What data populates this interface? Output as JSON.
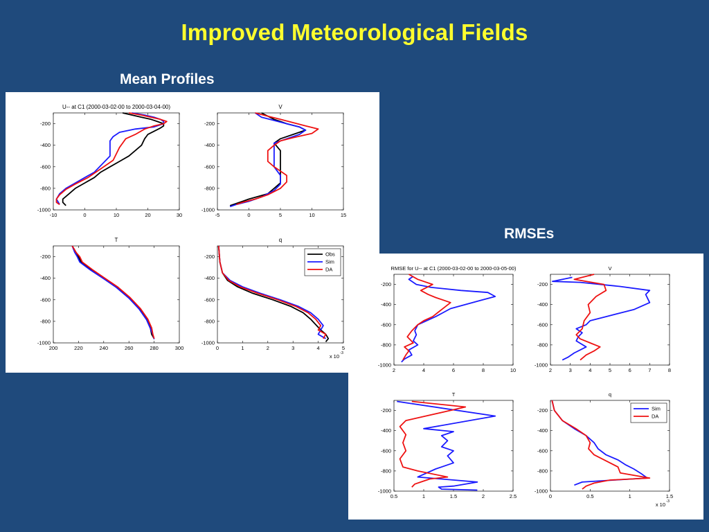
{
  "slide": {
    "title": "Improved Meteorological Fields",
    "mean_label": "Mean Profiles",
    "rmse_label": "RMSEs"
  },
  "colors": {
    "obs": "#000000",
    "sim": "#1a1aff",
    "da": "#ee1111"
  },
  "chart_data": [
    {
      "type": "line",
      "id": "mean-u",
      "title": "U-- at C1 (2000-03-02-00 to 2000-03-04-00)",
      "xlim": [
        -10,
        30
      ],
      "ylim": [
        -1000,
        -100
      ],
      "xticks": [
        "-10",
        "0",
        "10",
        "20",
        "30"
      ],
      "yticks": [
        "-200",
        "-400",
        "-600",
        "-800",
        "-1000"
      ],
      "series": [
        {
          "name": "Obs",
          "x": [
            12,
            15,
            18,
            21,
            23,
            25,
            25,
            24,
            22,
            20,
            19,
            18,
            16,
            14,
            11,
            8,
            5,
            3,
            0,
            -3,
            -5,
            -7,
            -7,
            -6
          ],
          "y": [
            -100,
            -120,
            -140,
            -160,
            -180,
            -200,
            -220,
            -240,
            -270,
            -300,
            -340,
            -400,
            -450,
            -500,
            -550,
            -600,
            -650,
            -700,
            -750,
            -800,
            -850,
            -900,
            -930,
            -960
          ]
        },
        {
          "name": "Sim",
          "x": [
            15,
            19,
            22,
            24,
            25,
            25,
            22,
            16,
            11,
            9,
            8,
            8,
            8,
            8,
            6,
            3,
            0,
            -3,
            -6,
            -8,
            -9,
            -8
          ],
          "y": [
            -100,
            -120,
            -140,
            -160,
            -180,
            -200,
            -230,
            -250,
            -280,
            -320,
            -360,
            -400,
            -450,
            -500,
            -560,
            -650,
            -700,
            -750,
            -800,
            -850,
            -900,
            -950
          ]
        },
        {
          "name": "DA",
          "x": [
            14,
            18,
            21,
            24,
            26,
            25,
            22,
            19,
            16,
            13,
            12,
            11,
            10,
            9,
            5,
            1,
            -3,
            -6,
            -8,
            -9,
            -9,
            -8
          ],
          "y": [
            -100,
            -120,
            -140,
            -160,
            -180,
            -200,
            -220,
            -250,
            -300,
            -340,
            -380,
            -420,
            -480,
            -540,
            -620,
            -700,
            -760,
            -810,
            -860,
            -900,
            -930,
            -950
          ]
        }
      ]
    },
    {
      "type": "line",
      "id": "mean-v",
      "title": "V",
      "xlim": [
        -5,
        15
      ],
      "ylim": [
        -1000,
        -100
      ],
      "xticks": [
        "-5",
        "0",
        "5",
        "10",
        "15"
      ],
      "yticks": [
        "-200",
        "-400",
        "-600",
        "-800",
        "-1000"
      ],
      "series": [
        {
          "name": "Obs",
          "x": [
            2,
            3,
            4,
            5,
            6,
            8,
            9,
            7,
            5,
            4,
            5,
            5,
            5,
            5,
            5,
            4,
            3,
            0,
            -1,
            -2,
            -3
          ],
          "y": [
            -100,
            -130,
            -160,
            -180,
            -200,
            -230,
            -260,
            -300,
            -340,
            -380,
            -450,
            -500,
            -550,
            -650,
            -750,
            -800,
            -850,
            -900,
            -920,
            -940,
            -960
          ]
        },
        {
          "name": "Sim",
          "x": [
            1,
            2,
            4,
            6,
            8,
            9,
            8,
            6,
            4,
            4,
            4,
            4,
            5,
            5,
            4,
            2,
            0,
            -2,
            -3
          ],
          "y": [
            -100,
            -140,
            -170,
            -200,
            -230,
            -260,
            -300,
            -340,
            -380,
            -450,
            -520,
            -600,
            -680,
            -760,
            -820,
            -880,
            -920,
            -950,
            -970
          ]
        },
        {
          "name": "DA",
          "x": [
            1,
            3,
            5,
            7,
            9,
            11,
            10,
            7,
            5,
            4,
            3,
            3,
            4,
            6,
            6,
            5,
            3,
            1,
            -1,
            -2
          ],
          "y": [
            -100,
            -130,
            -160,
            -190,
            -220,
            -250,
            -290,
            -330,
            -360,
            -400,
            -450,
            -550,
            -600,
            -680,
            -740,
            -800,
            -860,
            -900,
            -930,
            -950
          ]
        }
      ]
    },
    {
      "type": "line",
      "id": "mean-t",
      "title": "T",
      "xlim": [
        200,
        300
      ],
      "ylim": [
        -1000,
        -100
      ],
      "xticks": [
        "200",
        "220",
        "240",
        "260",
        "280",
        "300"
      ],
      "yticks": [
        "-200",
        "-400",
        "-600",
        "-800",
        "-1000"
      ],
      "series": [
        {
          "name": "Obs",
          "x": [
            215,
            218,
            220,
            222,
            230,
            240,
            250,
            260,
            268,
            274,
            277,
            278,
            280
          ],
          "y": [
            -100,
            -160,
            -200,
            -250,
            -320,
            -400,
            -480,
            -580,
            -680,
            -780,
            -860,
            -920,
            -960
          ]
        },
        {
          "name": "Sim",
          "x": [
            215,
            217,
            219,
            221,
            229,
            240,
            250,
            260,
            268,
            274,
            277,
            279,
            280
          ],
          "y": [
            -100,
            -160,
            -200,
            -250,
            -320,
            -405,
            -485,
            -585,
            -685,
            -785,
            -865,
            -925,
            -965
          ]
        },
        {
          "name": "DA",
          "x": [
            215,
            218,
            221,
            223,
            231,
            241,
            251,
            261,
            269,
            275,
            278,
            279,
            280
          ],
          "y": [
            -100,
            -160,
            -200,
            -250,
            -320,
            -400,
            -480,
            -580,
            -680,
            -780,
            -860,
            -920,
            -960
          ]
        }
      ]
    },
    {
      "type": "line",
      "id": "mean-q",
      "title": "q",
      "xlabel_exponent": "x 10",
      "xlabel_exponent_power": "-3",
      "legend": "top-right",
      "xlim": [
        0,
        5
      ],
      "ylim": [
        -1000,
        -100
      ],
      "xticks": [
        "0",
        "1",
        "2",
        "3",
        "4",
        "5"
      ],
      "yticks": [
        "-200",
        "-400",
        "-600",
        "-800",
        "-1000"
      ],
      "series": [
        {
          "name": "Obs",
          "x": [
            0.05,
            0.1,
            0.2,
            0.4,
            0.8,
            1.4,
            2.2,
            2.9,
            3.4,
            3.7,
            3.9,
            4.1,
            4.3,
            4.4,
            4.3
          ],
          "y": [
            -100,
            -250,
            -350,
            -420,
            -480,
            -540,
            -600,
            -660,
            -720,
            -780,
            -830,
            -880,
            -920,
            -960,
            -990
          ]
        },
        {
          "name": "Sim",
          "x": [
            0.05,
            0.1,
            0.2,
            0.5,
            1.0,
            1.7,
            2.5,
            3.2,
            3.7,
            4.0,
            4.2,
            4.1,
            4.0,
            4.3
          ],
          "y": [
            -100,
            -250,
            -350,
            -420,
            -480,
            -540,
            -600,
            -660,
            -720,
            -780,
            -840,
            -880,
            -920,
            -960
          ]
        },
        {
          "name": "DA",
          "x": [
            0.05,
            0.1,
            0.2,
            0.45,
            0.9,
            1.6,
            2.4,
            3.1,
            3.6,
            3.9,
            4.1,
            4.0,
            4.3,
            4.2
          ],
          "y": [
            -100,
            -250,
            -350,
            -420,
            -480,
            -540,
            -600,
            -660,
            -720,
            -780,
            -840,
            -880,
            -920,
            -960
          ]
        }
      ]
    },
    {
      "type": "line",
      "id": "rmse-u",
      "title": "RMSE for U-- at C1 (2000-03-02-00 to 2000-03-05-00)",
      "xlim": [
        2,
        10
      ],
      "ylim": [
        -1000,
        -100
      ],
      "xticks": [
        "2",
        "4",
        "6",
        "8",
        "10"
      ],
      "yticks": [
        "-200",
        "-400",
        "-600",
        "-800",
        "-1000"
      ],
      "series": [
        {
          "name": "Sim",
          "x": [
            3.3,
            3.0,
            3.5,
            4.5,
            6.5,
            8.3,
            8.8,
            7.8,
            5.8,
            4.8,
            3.6,
            3.4,
            3.5,
            3.3,
            3.6,
            3.0,
            3.2,
            2.7,
            2.5
          ],
          "y": [
            -120,
            -150,
            -200,
            -230,
            -260,
            -280,
            -320,
            -360,
            -440,
            -520,
            -600,
            -660,
            -700,
            -760,
            -800,
            -850,
            -900,
            -940,
            -970
          ]
        },
        {
          "name": "DA",
          "x": [
            3.0,
            3.6,
            4.6,
            3.8,
            4.3,
            4.8,
            5.8,
            5.2,
            4.6,
            4.0,
            3.6,
            3.2,
            2.9,
            3.3,
            2.7,
            3.0,
            2.8,
            2.6
          ],
          "y": [
            -100,
            -150,
            -200,
            -260,
            -300,
            -330,
            -380,
            -450,
            -520,
            -560,
            -600,
            -660,
            -720,
            -780,
            -820,
            -860,
            -900,
            -950
          ]
        }
      ]
    },
    {
      "type": "line",
      "id": "rmse-v",
      "title": "V",
      "xlim": [
        2,
        8
      ],
      "ylim": [
        -1000,
        -100
      ],
      "xticks": [
        "2",
        "3",
        "4",
        "5",
        "6",
        "7",
        "8"
      ],
      "yticks": [
        "-200",
        "-400",
        "-600",
        "-800",
        "-1000"
      ],
      "series": [
        {
          "name": "Sim",
          "x": [
            3.1,
            2.1,
            3.5,
            5.5,
            7.0,
            6.8,
            7.0,
            6.2,
            4.8,
            4.0,
            3.8,
            3.3,
            3.6,
            3.4,
            3.3,
            3.8,
            3.2,
            2.9,
            2.6
          ],
          "y": [
            -130,
            -170,
            -180,
            -220,
            -260,
            -300,
            -380,
            -450,
            -520,
            -560,
            -600,
            -640,
            -680,
            -720,
            -760,
            -820,
            -880,
            -920,
            -950
          ]
        },
        {
          "name": "DA",
          "x": [
            4.2,
            3.2,
            4.7,
            4.8,
            4.3,
            3.9,
            4.0,
            3.7,
            3.6,
            3.3,
            3.5,
            4.0,
            4.5,
            4.2,
            3.8,
            3.5
          ],
          "y": [
            -100,
            -150,
            -200,
            -260,
            -320,
            -400,
            -480,
            -560,
            -640,
            -700,
            -740,
            -780,
            -820,
            -860,
            -900,
            -950
          ]
        }
      ]
    },
    {
      "type": "line",
      "id": "rmse-t",
      "title": "T",
      "xlim": [
        0.5,
        2.5
      ],
      "ylim": [
        -1000,
        -100
      ],
      "xticks": [
        "0.5",
        "1",
        "1.5",
        "2",
        "2.5"
      ],
      "yticks": [
        "-200",
        "-400",
        "-600",
        "-800",
        "-1000"
      ],
      "series": [
        {
          "name": "Sim",
          "x": [
            0.55,
            2.2,
            1.0,
            1.5,
            1.3,
            1.4,
            1.3,
            1.5,
            1.4,
            1.5,
            1.2,
            0.9,
            1.9,
            1.5,
            1.25,
            1.3,
            1.9
          ],
          "y": [
            -110,
            -255,
            -380,
            -410,
            -450,
            -500,
            -560,
            -600,
            -650,
            -720,
            -780,
            -860,
            -910,
            -950,
            -960,
            -980,
            -990
          ]
        },
        {
          "name": "DA",
          "x": [
            0.8,
            1.7,
            1.0,
            0.7,
            0.6,
            0.7,
            0.65,
            0.7,
            0.6,
            0.65,
            0.9,
            1.4,
            1.1,
            0.95,
            0.85,
            0.8
          ],
          "y": [
            -110,
            -165,
            -260,
            -300,
            -360,
            -440,
            -520,
            -600,
            -680,
            -760,
            -800,
            -860,
            -880,
            -910,
            -930,
            -960
          ]
        }
      ]
    },
    {
      "type": "line",
      "id": "rmse-q",
      "title": "q",
      "xlabel_exponent": "x 10",
      "xlabel_exponent_power": "-3",
      "legend": "top-right",
      "xlim": [
        0,
        1.5
      ],
      "ylim": [
        -1000,
        -100
      ],
      "xticks": [
        "0",
        "0.5",
        "1",
        "1.5"
      ],
      "yticks": [
        "-200",
        "-400",
        "-600",
        "-800",
        "-1000"
      ],
      "series": [
        {
          "name": "Sim",
          "x": [
            0.02,
            0.05,
            0.15,
            0.3,
            0.45,
            0.55,
            0.6,
            0.7,
            0.85,
            0.95,
            1.05,
            1.15,
            1.22,
            0.8,
            0.4,
            0.3
          ],
          "y": [
            -100,
            -200,
            -300,
            -380,
            -450,
            -520,
            -580,
            -640,
            -690,
            -740,
            -780,
            -830,
            -870,
            -890,
            -910,
            -940
          ]
        },
        {
          "name": "DA",
          "x": [
            0.02,
            0.05,
            0.15,
            0.32,
            0.45,
            0.5,
            0.48,
            0.55,
            0.7,
            0.85,
            0.88,
            1.25,
            0.75,
            0.55,
            0.45,
            0.4
          ],
          "y": [
            -100,
            -200,
            -300,
            -380,
            -450,
            -520,
            -580,
            -640,
            -700,
            -760,
            -820,
            -870,
            -890,
            -920,
            -950,
            -980
          ]
        }
      ]
    }
  ]
}
